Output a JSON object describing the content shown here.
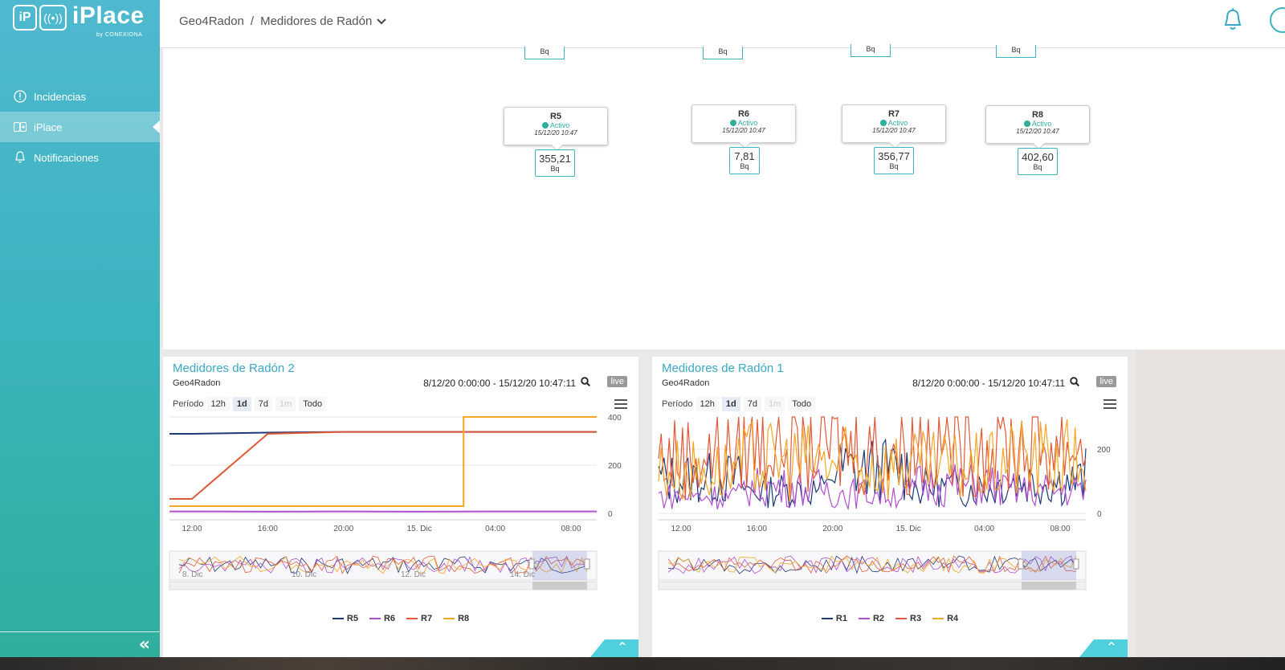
{
  "app": {
    "logo_text": "iPlace",
    "logo_sub": "by CONEXIONA"
  },
  "sidebar": {
    "items": [
      {
        "label": "Incidencias",
        "icon": "alert-circle-icon"
      },
      {
        "label": "iPlace",
        "icon": "iplace-icon",
        "active": true
      },
      {
        "label": "Notificaciones",
        "icon": "bell-icon"
      }
    ],
    "collapse_label": "«"
  },
  "header": {
    "breadcrumb_root": "Geo4Radon",
    "breadcrumb_sep": "/",
    "breadcrumb_current": "Medidores de Radón"
  },
  "floor": {
    "cut_units": [
      "Bq",
      "Bq",
      "Bq",
      "Bq"
    ],
    "sensors": [
      {
        "name": "R5",
        "status": "Activo",
        "time": "15/12/20 10:47",
        "value": "355,21",
        "unit": "Bq"
      },
      {
        "name": "R6",
        "status": "Activo",
        "time": "15/12/20 10:47",
        "value": "7,81",
        "unit": "Bq"
      },
      {
        "name": "R7",
        "status": "Activo",
        "time": "15/12/20 10:47",
        "value": "356,77",
        "unit": "Bq"
      },
      {
        "name": "R8",
        "status": "Activo",
        "time": "15/12/20 10:47",
        "value": "402,60",
        "unit": "Bq"
      }
    ]
  },
  "panels": [
    {
      "title": "Medidores de Radón 2",
      "subtitle": "Geo4Radon",
      "range": "8/12/20 0:00:00 - 15/12/20 10:47:11",
      "live": "live",
      "period_label": "Período",
      "periods": [
        "12h",
        "1d",
        "7d",
        "1m",
        "Todo"
      ],
      "selected_period": "1d",
      "disabled_period": "1m",
      "xticks": [
        "12:00",
        "16:00",
        "20:00",
        "15. Dic",
        "04:00",
        "08:00"
      ],
      "yticks": [
        "400",
        "200",
        "0"
      ],
      "nav_labels": [
        "8. Dic",
        "10. Dic",
        "12. Dic",
        "14. Dic"
      ],
      "legend": [
        "R5",
        "R6",
        "R7",
        "R8"
      ]
    },
    {
      "title": "Medidores de Radón 1",
      "subtitle": "Geo4Radon",
      "range": "8/12/20 0:00:00 - 15/12/20 10:47:11",
      "live": "live",
      "period_label": "Período",
      "periods": [
        "12h",
        "1d",
        "7d",
        "1m",
        "Todo"
      ],
      "selected_period": "1d",
      "disabled_period": "1m",
      "xticks": [
        "12:00",
        "16:00",
        "20:00",
        "15. Dic",
        "04:00",
        "08:00"
      ],
      "yticks": [
        "200",
        "0"
      ],
      "nav_labels": [],
      "legend": [
        "R1",
        "R2",
        "R3",
        "R4"
      ]
    }
  ],
  "colors": {
    "accent": "#3aa8c6",
    "sidebar_top": "#4fb9cf",
    "sidebar_bottom": "#2fae9c",
    "series": [
      "#1f3a7a",
      "#b04fd0",
      "#e05a3a",
      "#f5a623"
    ]
  },
  "chart_data": [
    {
      "type": "line",
      "title": "Medidores de Radón 2",
      "x": [
        "12:00",
        "16:00",
        "20:00",
        "15. Dic",
        "04:00",
        "08:00"
      ],
      "ylim": [
        0,
        400
      ],
      "legend_placement": "bottom",
      "series": [
        {
          "name": "R5",
          "values": [
            330,
            335,
            338,
            338,
            338,
            338
          ]
        },
        {
          "name": "R6",
          "values": [
            8,
            7,
            8,
            7,
            8,
            8
          ]
        },
        {
          "name": "R7",
          "values": [
            60,
            330,
            338,
            338,
            338,
            338
          ]
        },
        {
          "name": "R8",
          "values": [
            30,
            30,
            30,
            30,
            400,
            400
          ]
        }
      ]
    },
    {
      "type": "line",
      "title": "Medidores de Radón 1",
      "x": [
        "12:00",
        "16:00",
        "20:00",
        "15. Dic",
        "04:00",
        "08:00"
      ],
      "ylim": [
        0,
        300
      ],
      "legend_placement": "bottom",
      "series": [
        {
          "name": "R1",
          "values": [
            120,
            80,
            150,
            90,
            110,
            130
          ]
        },
        {
          "name": "R2",
          "values": [
            60,
            90,
            70,
            100,
            80,
            90
          ]
        },
        {
          "name": "R3",
          "values": [
            200,
            260,
            230,
            250,
            240,
            220
          ]
        },
        {
          "name": "R4",
          "values": [
            150,
            180,
            170,
            160,
            190,
            170
          ]
        }
      ]
    }
  ]
}
